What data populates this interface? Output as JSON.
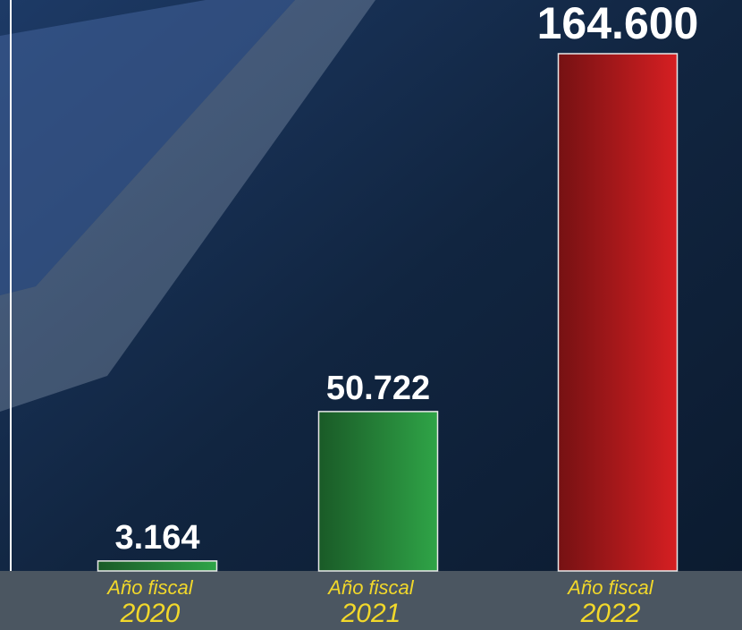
{
  "chart_data": {
    "type": "bar",
    "category_label": "Año fiscal",
    "categories": [
      "2020",
      "2021",
      "2022"
    ],
    "values": [
      3164,
      50722,
      164600
    ],
    "value_labels": [
      "3.164",
      "50.722",
      "164.600"
    ],
    "colors": [
      "#2fa447",
      "#2fa447",
      "#d61f22"
    ]
  }
}
